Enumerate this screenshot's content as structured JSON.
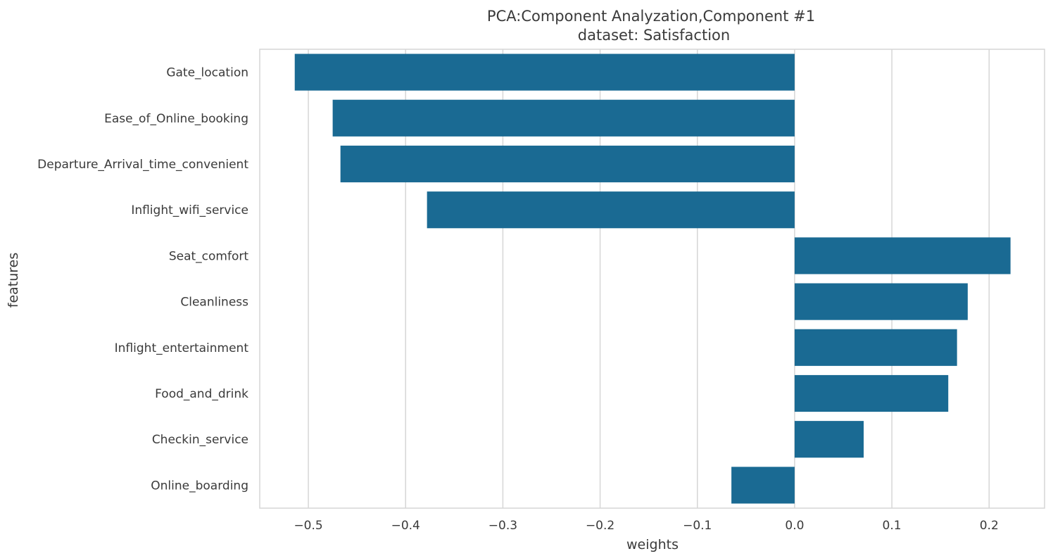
{
  "chart_data": {
    "type": "bar",
    "orientation": "horizontal",
    "title": "PCA:Component Analyzation,Component #1",
    "subtitle": "dataset: Satisfaction",
    "xlabel": "weights",
    "ylabel": "features",
    "xlim": [
      -0.55,
      0.257
    ],
    "xticks": [
      -0.5,
      -0.4,
      -0.3,
      -0.2,
      -0.1,
      0.0,
      0.1,
      0.2
    ],
    "xtick_labels": [
      "−0.5",
      "−0.4",
      "−0.3",
      "−0.2",
      "−0.1",
      "0.0",
      "0.1",
      "0.2"
    ],
    "categories": [
      "Gate_location",
      "Ease_of_Online_booking",
      "Departure_Arrival_time_convenient",
      "Inflight_wifi_service",
      "Seat_comfort",
      "Cleanliness",
      "Inflight_entertainment",
      "Food_and_drink",
      "Checkin_service",
      "Online_boarding"
    ],
    "values": [
      -0.514,
      -0.475,
      -0.467,
      -0.378,
      0.222,
      0.178,
      0.167,
      0.158,
      0.071,
      -0.065
    ],
    "grid": "x",
    "colors": {
      "bar": "#1a6a93",
      "grid": "#d6d6d6",
      "frame": "#d6d6d6",
      "text": "#3a3a3a"
    }
  }
}
